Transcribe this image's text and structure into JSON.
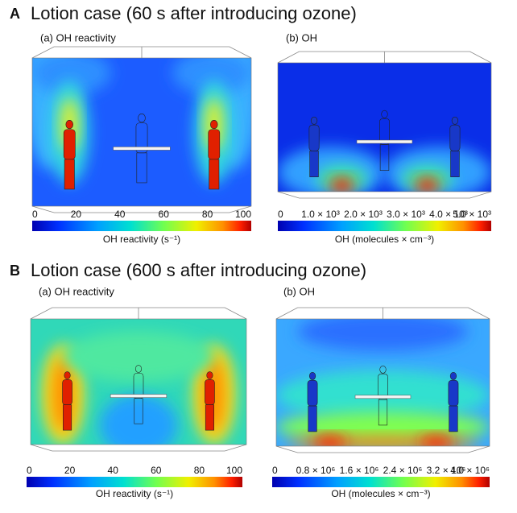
{
  "panels": [
    {
      "letter": "A",
      "title": "Lotion case (60 s after introducing ozone)",
      "subpanels": [
        {
          "label": "(a) OH reactivity",
          "colorbar": {
            "ticks": [
              "0",
              "20",
              "40",
              "60",
              "80",
              "100"
            ],
            "label": "OH reactivity (s⁻¹)"
          }
        },
        {
          "label": "(b) OH",
          "colorbar": {
            "ticks": [
              "0",
              "1.0 × 10³",
              "2.0 × 10³",
              "3.0 × 10³",
              "4.0 × 10³",
              "5.0 × 10³"
            ],
            "label": "OH (molecules × cm⁻³)"
          }
        }
      ]
    },
    {
      "letter": "B",
      "title": "Lotion case (600 s after introducing ozone)",
      "subpanels": [
        {
          "label": "(a) OH reactivity",
          "colorbar": {
            "ticks": [
              "0",
              "20",
              "40",
              "60",
              "80",
              "100"
            ],
            "label": "OH reactivity (s⁻¹)"
          }
        },
        {
          "label": "(b) OH",
          "colorbar": {
            "ticks": [
              "0",
              "0.8 × 10⁶",
              "1.6 × 10⁶",
              "2.4 × 10⁶",
              "3.2 × 10⁶",
              "4.0 × 10⁶"
            ],
            "label": "OH (molecules × cm⁻³)"
          }
        }
      ]
    }
  ]
}
